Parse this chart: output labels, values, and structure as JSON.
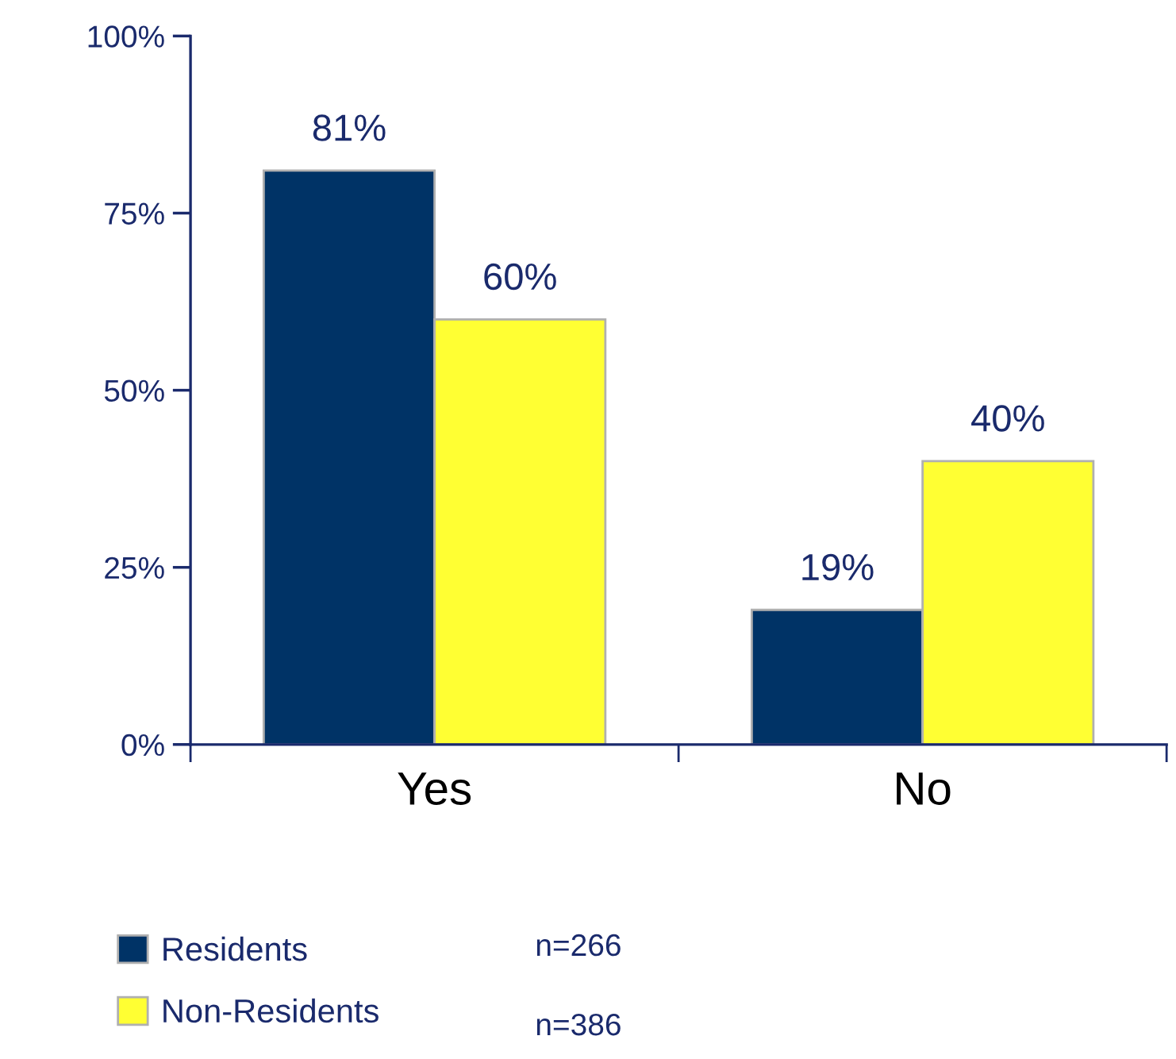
{
  "chart_data": {
    "type": "bar",
    "categories": [
      "Yes",
      "No"
    ],
    "series": [
      {
        "name": "Residents",
        "color": "#003366",
        "values": [
          81,
          19
        ],
        "value_labels": [
          "81%",
          "19%"
        ]
      },
      {
        "name": "Non-Residents",
        "color": "#ffff33",
        "values": [
          60,
          40
        ],
        "value_labels": [
          "60%",
          "40%"
        ]
      }
    ],
    "ylim": [
      0,
      100
    ],
    "yticks": [
      {
        "value": 0,
        "label": "0%"
      },
      {
        "value": 25,
        "label": "25%"
      },
      {
        "value": 50,
        "label": "50%"
      },
      {
        "value": 75,
        "label": "75%"
      },
      {
        "value": 100,
        "label": "100%"
      }
    ],
    "grid": false,
    "legend": "bottom left",
    "annotations": [
      "n=266",
      "n=386"
    ]
  }
}
